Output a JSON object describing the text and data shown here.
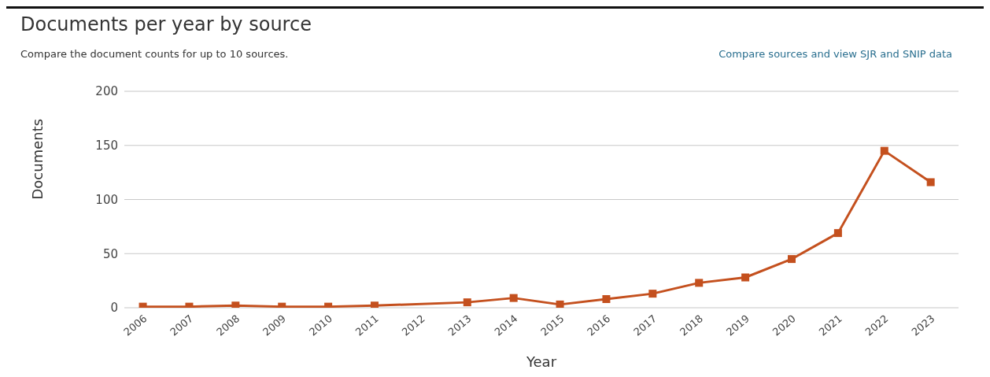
{
  "chart_data": {
    "type": "line",
    "title": "Documents per year by source",
    "subtitle": "Compare the document counts for up to 10 sources.",
    "annotations": [
      "Compare sources and view SJR and SNIP data"
    ],
    "xlabel": "Year",
    "ylabel": "Documents",
    "x": [
      2006,
      2007,
      2008,
      2009,
      2010,
      2011,
      2013,
      2014,
      2015,
      2016,
      2017,
      2018,
      2019,
      2020,
      2021,
      2022,
      2023
    ],
    "series": [
      {
        "color": "#c4501e",
        "values": [
          1,
          1,
          2,
          1,
          1,
          2,
          5,
          9,
          3,
          8,
          13,
          23,
          28,
          45,
          69,
          145,
          116
        ]
      }
    ],
    "xlim": [
      2005.6,
      2023.6
    ],
    "xticks": [
      2006,
      2007,
      2008,
      2009,
      2010,
      2011,
      2012,
      2013,
      2014,
      2015,
      2016,
      2017,
      2018,
      2019,
      2020,
      2021,
      2022,
      2023
    ],
    "ylim": [
      0,
      200
    ],
    "yticks": [
      0,
      50,
      100,
      150,
      200
    ],
    "grid": "y",
    "marker": "square",
    "line_style": "solid",
    "legend": false
  }
}
